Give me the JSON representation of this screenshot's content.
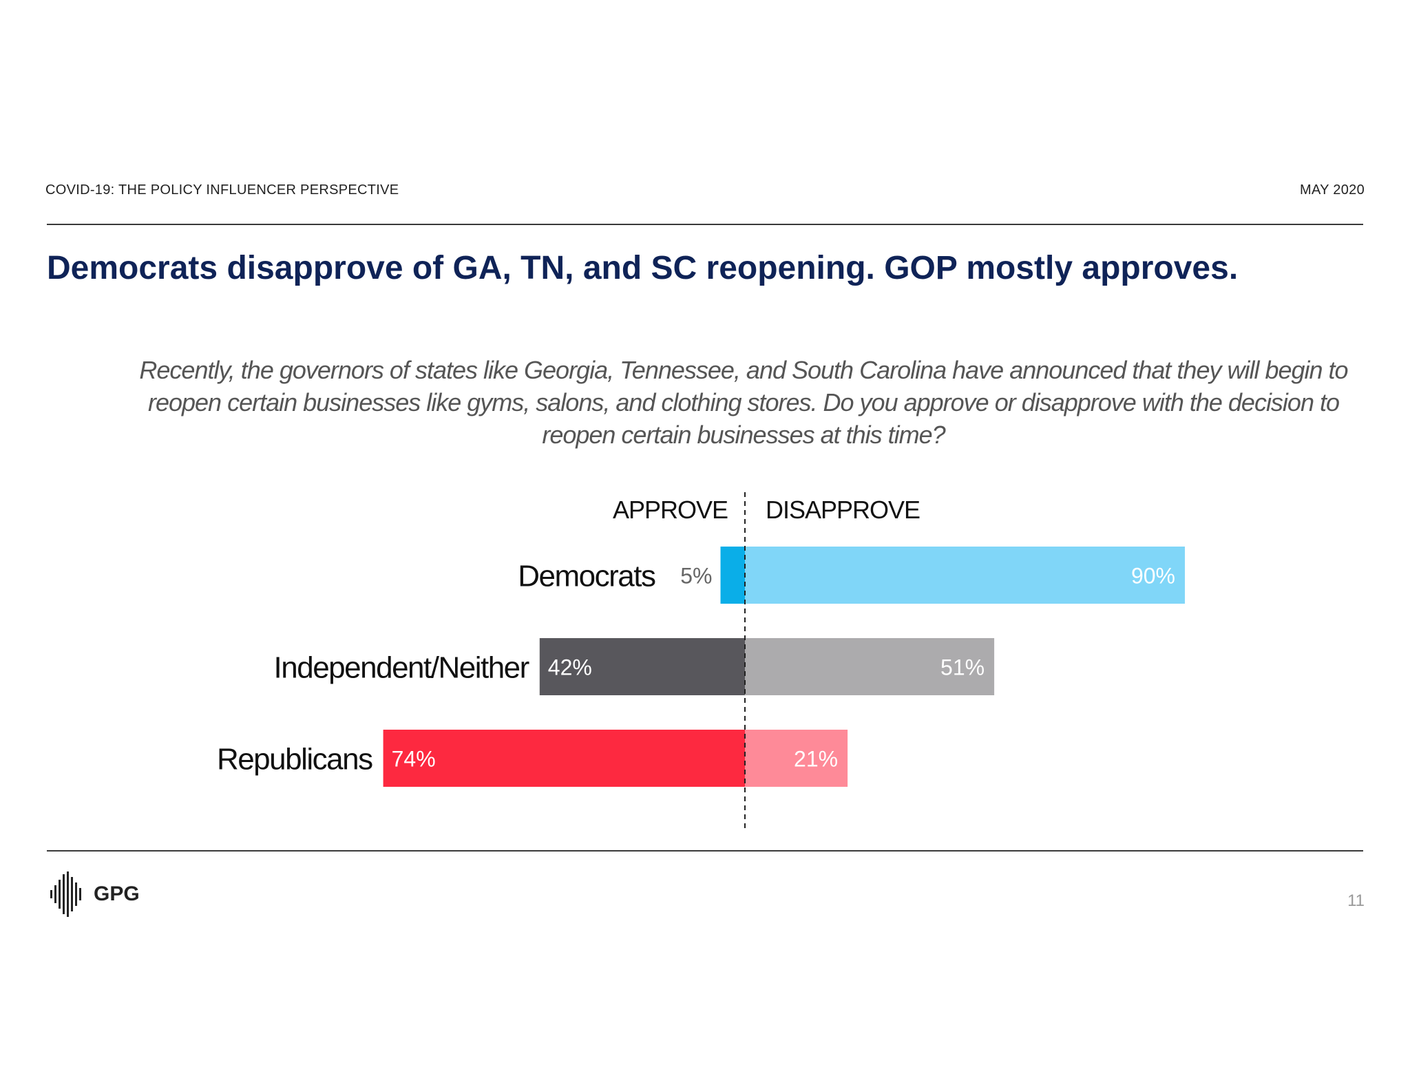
{
  "header": {
    "left": "COVID-19: THE POLICY INFLUENCER PERSPECTIVE",
    "right": "MAY 2020"
  },
  "title": "Democrats disapprove of GA, TN, and SC reopening. GOP mostly approves.",
  "question": "Recently, the governors of states like Georgia, Tennessee, and South Carolina have announced that they will begin to reopen certain businesses like gyms, salons, and clothing stores. Do you approve or disapprove with the decision to reopen certain businesses at this time?",
  "footer": {
    "logo_text": "GPG",
    "page_number": "11"
  },
  "chart_data": {
    "type": "bar",
    "orientation": "horizontal-diverging",
    "categories": [
      "Democrats",
      "Independent/Neither",
      "Republicans"
    ],
    "series": [
      {
        "name": "APPROVE",
        "values": [
          5,
          42,
          74
        ],
        "labels": [
          "5%",
          "42%",
          "74%"
        ]
      },
      {
        "name": "DISAPPROVE",
        "values": [
          90,
          51,
          21
        ],
        "labels": [
          "90%",
          "51%",
          "21%"
        ]
      }
    ],
    "colors": {
      "approve": [
        "#0aaee8",
        "#58575c",
        "#fd2940"
      ],
      "disapprove": [
        "#80d6f8",
        "#acabad",
        "#fe8a98"
      ]
    },
    "unit": "%",
    "grid": false
  }
}
